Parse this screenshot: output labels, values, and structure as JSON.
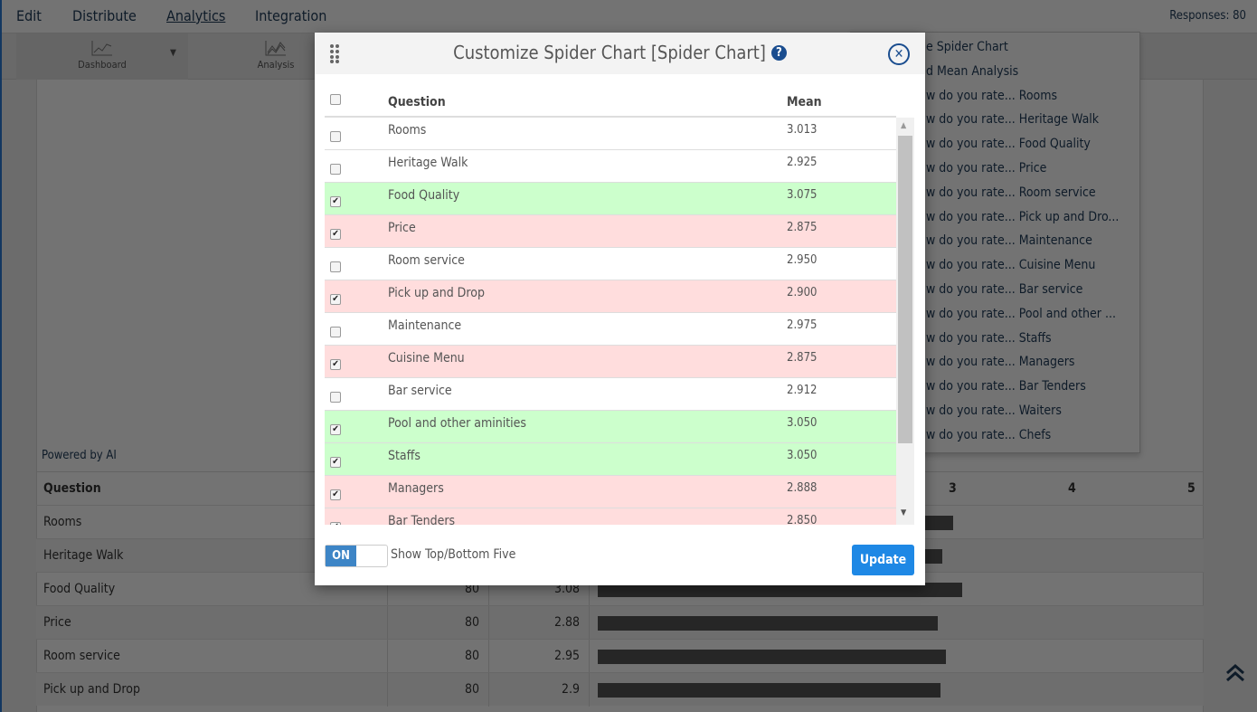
{
  "topnav": {
    "items": [
      "Edit",
      "Distribute",
      "Analytics",
      "Integration"
    ],
    "active": "Analytics",
    "responses": "Responses: 80"
  },
  "toolbar": {
    "dashboard": "Dashboard",
    "analysis": "Analysis"
  },
  "powered_by": "Powered by AI",
  "bg_table": {
    "header": "Question",
    "ticks": [
      "3",
      "4",
      "5"
    ],
    "rows": [
      {
        "question": "Rooms",
        "count": "",
        "mean": "",
        "bar": 3.01
      },
      {
        "question": "Heritage Walk",
        "count": "",
        "mean": "",
        "bar": 2.92
      },
      {
        "question": "Food Quality",
        "count": "80",
        "mean": "3.08",
        "bar": 3.08
      },
      {
        "question": "Price",
        "count": "80",
        "mean": "2.88",
        "bar": 2.88
      },
      {
        "question": "Room service",
        "count": "80",
        "mean": "2.95",
        "bar": 2.95
      },
      {
        "question": "Pick up and Drop",
        "count": "80",
        "mean": "2.9",
        "bar": 2.9
      }
    ]
  },
  "menu": {
    "items": [
      "e Spider Chart",
      "d Mean Analysis",
      "w do you rate... Rooms",
      "w do you rate... Heritage Walk",
      "w do you rate... Food Quality",
      "w do you rate... Price",
      "w do you rate... Room service",
      "w do you rate... Pick up and Dro...",
      "w do you rate... Maintenance",
      "w do you rate... Cuisine Menu",
      "w do you rate... Bar service",
      "w do you rate... Pool and other ...",
      "w do you rate... Staffs",
      "w do you rate... Managers",
      "w do you rate... Bar Tenders",
      "w do you rate... Waiters",
      "w do you rate... Chefs"
    ]
  },
  "modal": {
    "title": "Customize Spider Chart [Spider Chart]",
    "help": "?",
    "col_question": "Question",
    "col_mean": "Mean",
    "rows": [
      {
        "q": "Rooms",
        "mean": "3.013",
        "checked": false,
        "hl": ""
      },
      {
        "q": "Heritage Walk",
        "mean": "2.925",
        "checked": false,
        "hl": ""
      },
      {
        "q": "Food Quality",
        "mean": "3.075",
        "checked": true,
        "hl": "g"
      },
      {
        "q": "Price",
        "mean": "2.875",
        "checked": true,
        "hl": "r"
      },
      {
        "q": "Room service",
        "mean": "2.950",
        "checked": false,
        "hl": ""
      },
      {
        "q": "Pick up and Drop",
        "mean": "2.900",
        "checked": true,
        "hl": "r"
      },
      {
        "q": "Maintenance",
        "mean": "2.975",
        "checked": false,
        "hl": ""
      },
      {
        "q": "Cuisine Menu",
        "mean": "2.875",
        "checked": true,
        "hl": "r"
      },
      {
        "q": "Bar service",
        "mean": "2.912",
        "checked": false,
        "hl": ""
      },
      {
        "q": "Pool and other aminities",
        "mean": "3.050",
        "checked": true,
        "hl": "g"
      },
      {
        "q": "Staffs",
        "mean": "3.050",
        "checked": true,
        "hl": "g"
      },
      {
        "q": "Managers",
        "mean": "2.888",
        "checked": true,
        "hl": "r"
      },
      {
        "q": "Bar Tenders",
        "mean": "2.850",
        "checked": true,
        "hl": "r"
      }
    ],
    "toggle": "ON",
    "toggle_label": "Show Top/Bottom Five",
    "update": "Update"
  },
  "colors": {
    "accent": "#1e88e5",
    "green_row": "#ccffcc",
    "red_row": "#ffdddd",
    "toggle": "#3d85c6"
  }
}
